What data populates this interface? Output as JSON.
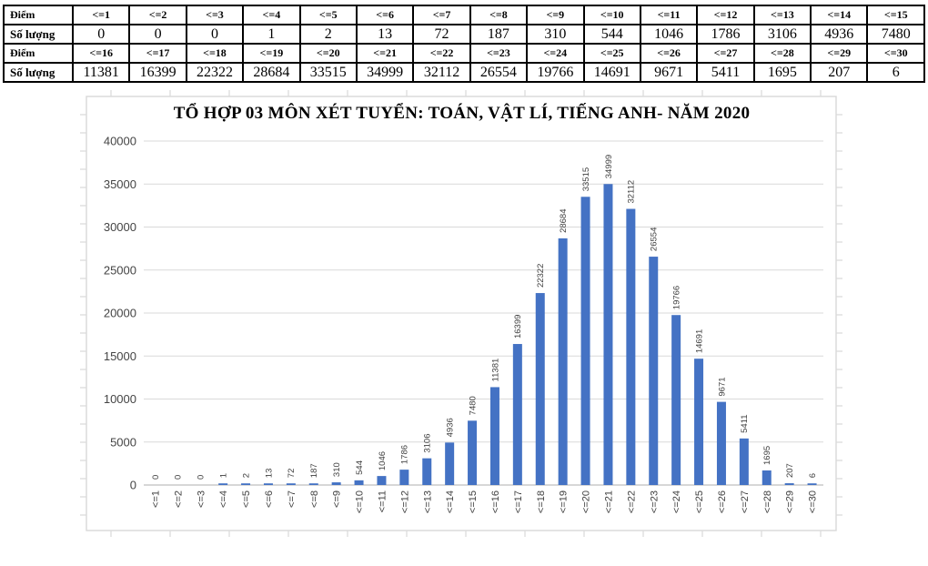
{
  "table": {
    "score_label": "Điểm",
    "count_label": "Số lượng",
    "rows": [
      {
        "headers": [
          "<=1",
          "<=2",
          "<=3",
          "<=4",
          "<=5",
          "<=6",
          "<=7",
          "<=8",
          "<=9",
          "<=10",
          "<=11",
          "<=12",
          "<=13",
          "<=14",
          "<=15"
        ],
        "values": [
          "0",
          "0",
          "0",
          "1",
          "2",
          "13",
          "72",
          "187",
          "310",
          "544",
          "1046",
          "1786",
          "3106",
          "4936",
          "7480"
        ]
      },
      {
        "headers": [
          "<=16",
          "<=17",
          "<=18",
          "<=19",
          "<=20",
          "<=21",
          "<=22",
          "<=23",
          "<=24",
          "<=25",
          "<=26",
          "<=27",
          "<=28",
          "<=29",
          "<=30"
        ],
        "values": [
          "11381",
          "16399",
          "22322",
          "28684",
          "33515",
          "34999",
          "32112",
          "26554",
          "19766",
          "14691",
          "9671",
          "5411",
          "1695",
          "207",
          "6"
        ]
      }
    ]
  },
  "chart_data": {
    "type": "bar",
    "title": "TỔ HỢP 03 MÔN XÉT TUYỂN: TOÁN, VẬT LÍ, TIẾNG ANH- NĂM 2020",
    "categories": [
      "<=1",
      "<=2",
      "<=3",
      "<=4",
      "<=5",
      "<=6",
      "<=7",
      "<=8",
      "<=9",
      "<=10",
      "<=11",
      "<=12",
      "<=13",
      "<=14",
      "<=15",
      "<=16",
      "<=17",
      "<=18",
      "<=19",
      "<=20",
      "<=21",
      "<=22",
      "<=23",
      "<=24",
      "<=25",
      "<=26",
      "<=27",
      "<=28",
      "<=29",
      "<=30"
    ],
    "values": [
      0,
      0,
      0,
      1,
      2,
      13,
      72,
      187,
      310,
      544,
      1046,
      1786,
      3106,
      4936,
      7480,
      11381,
      16399,
      22322,
      28684,
      33515,
      34999,
      32112,
      26554,
      19766,
      14691,
      9671,
      5411,
      1695,
      207,
      6
    ],
    "ylim": [
      0,
      40000
    ],
    "yticks": [
      0,
      5000,
      10000,
      15000,
      20000,
      25000,
      30000,
      35000,
      40000
    ],
    "grid": true,
    "legend": "none",
    "data_labels": true,
    "bar_color": "#4472C4",
    "gridline_color": "#D9D9D9",
    "axis_line_color": "#BFBFBF",
    "label_color": "#404040",
    "frame_color": "#D9D9D9"
  }
}
